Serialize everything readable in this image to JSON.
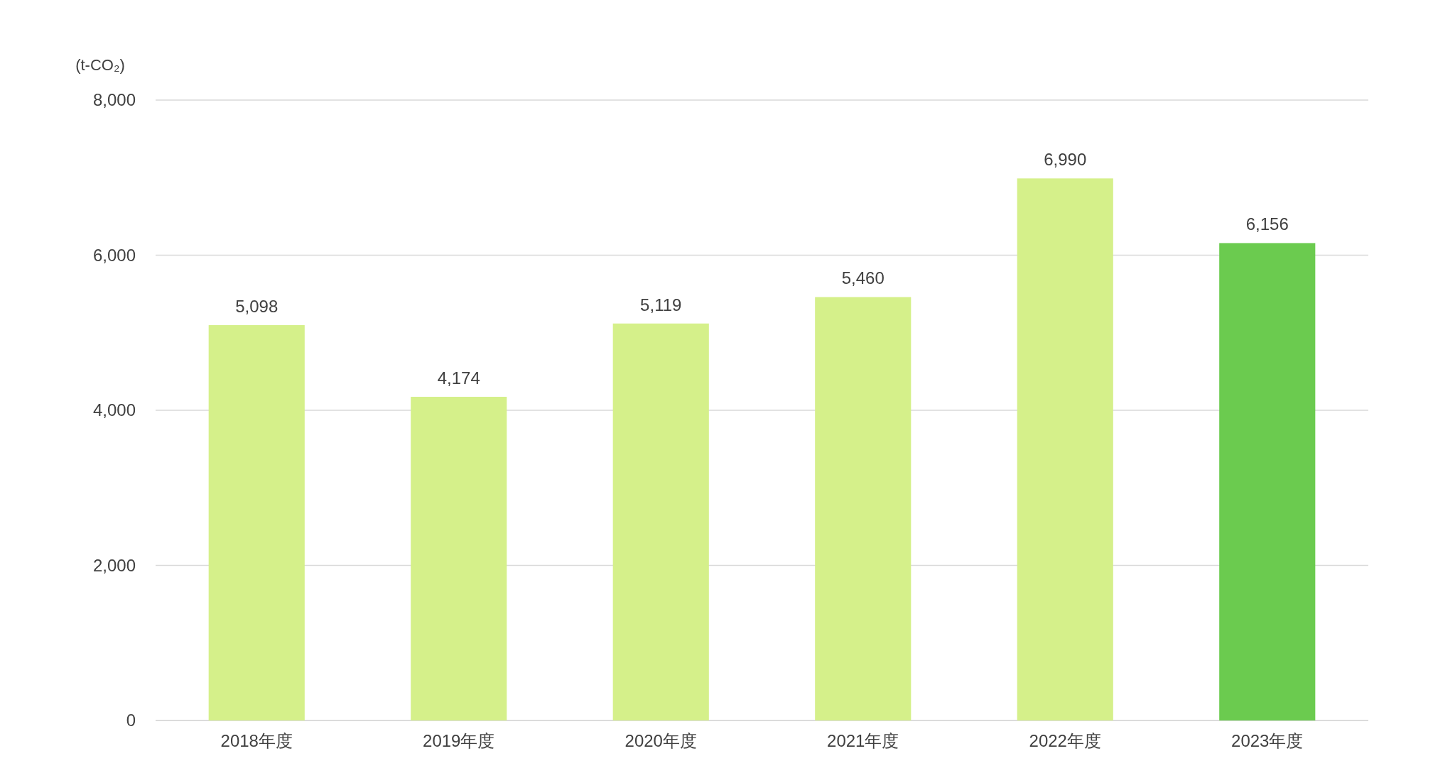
{
  "chart_data": {
    "type": "bar",
    "ylabel": "(t-CO₂)",
    "categories": [
      "2018年度",
      "2019年度",
      "2020年度",
      "2021年度",
      "2022年度",
      "2023年度"
    ],
    "values": [
      5098,
      4174,
      5119,
      5460,
      6990,
      6156
    ],
    "colors": [
      "#d5f08a",
      "#d5f08a",
      "#d5f08a",
      "#d5f08a",
      "#d5f08a",
      "#6bcb4f"
    ],
    "value_labels": [
      "5,098",
      "4,174",
      "5,119",
      "5,460",
      "6,990",
      "6,156"
    ],
    "ylim": [
      0,
      8000
    ],
    "yticks": [
      {
        "value": 0,
        "label": "0"
      },
      {
        "value": 2000,
        "label": "2,000"
      },
      {
        "value": 4000,
        "label": "4,000"
      },
      {
        "value": 6000,
        "label": "6,000"
      },
      {
        "value": 8000,
        "label": "8,000"
      }
    ],
    "grid": "y"
  }
}
